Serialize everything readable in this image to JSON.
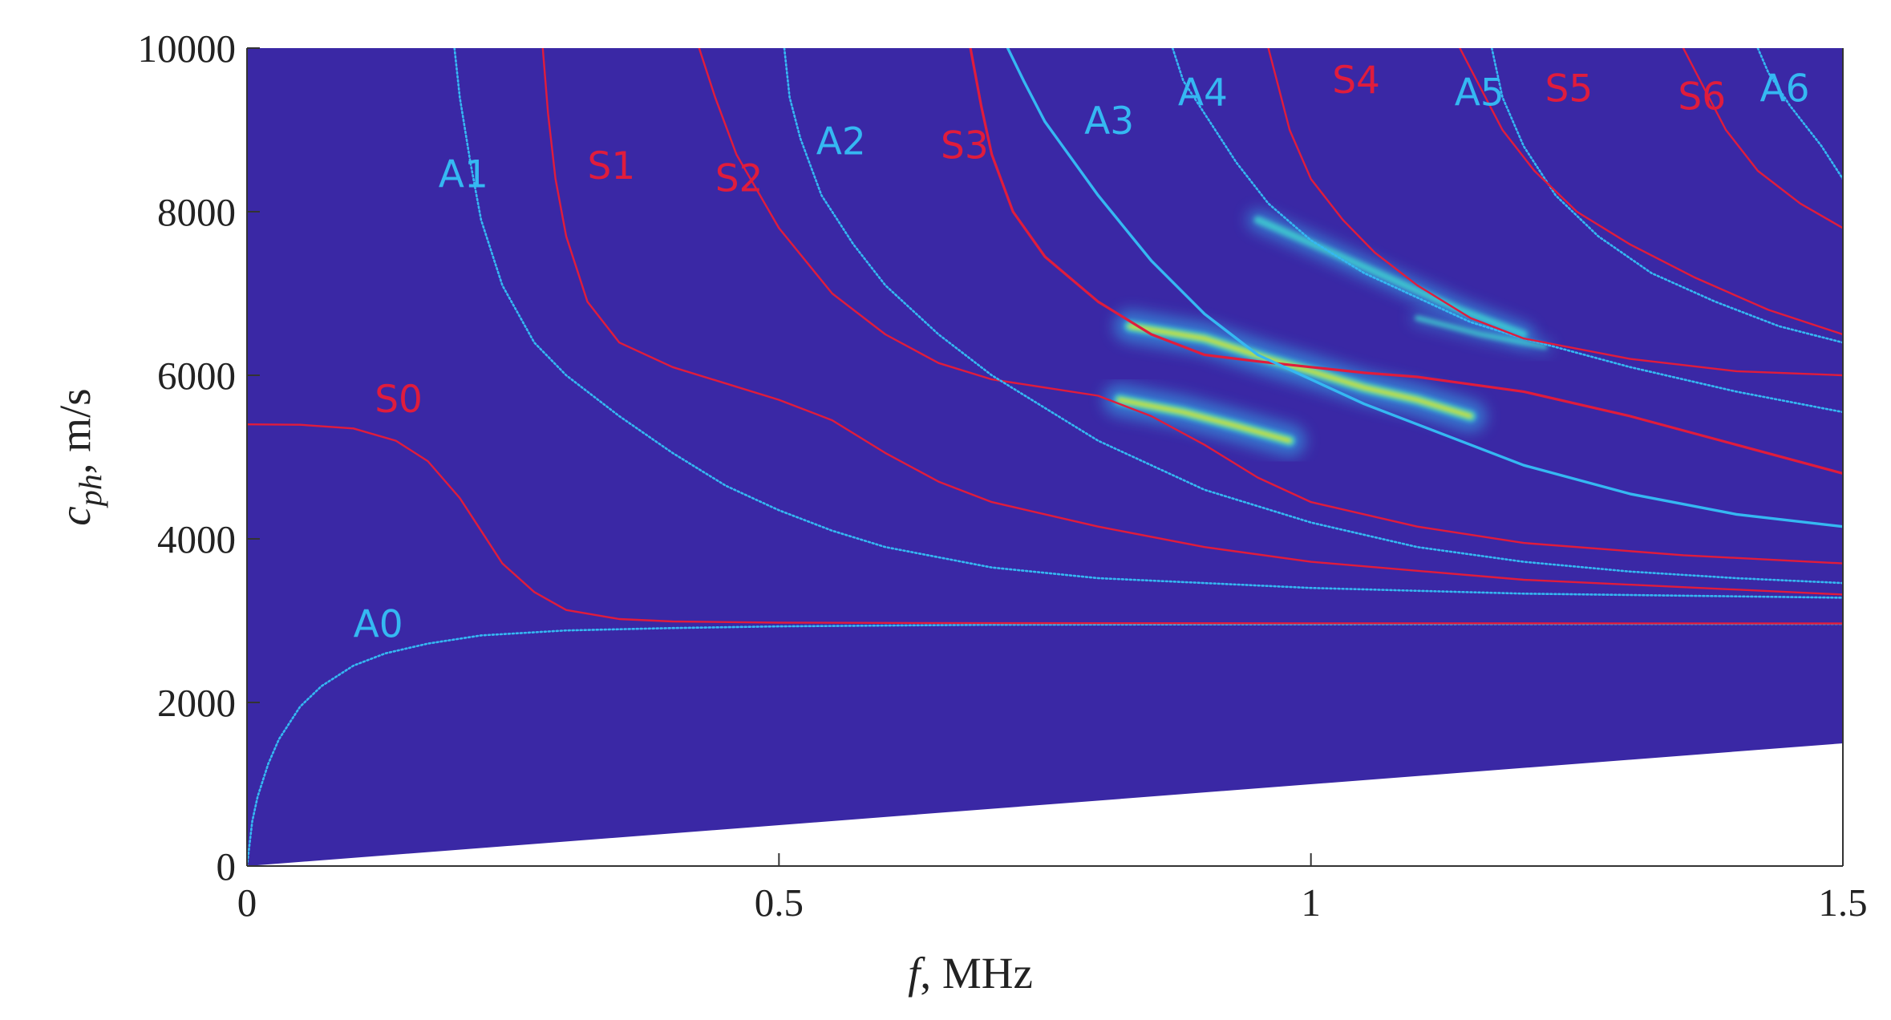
{
  "chart_data": {
    "type": "line",
    "title": "",
    "xlabel": {
      "symbol": "f",
      "rest": ", MHz"
    },
    "ylabel": {
      "symbol": "c",
      "subscript": "ph",
      "rest": ", m/s"
    },
    "xlim": [
      0,
      1.5
    ],
    "ylim": [
      0,
      10000
    ],
    "xticks": [
      0,
      0.5,
      1,
      1.5
    ],
    "xtick_labels": [
      "0",
      "0.5",
      "1",
      "1.5"
    ],
    "yticks": [
      0,
      2000,
      4000,
      6000,
      8000,
      10000
    ],
    "ytick_labels": [
      "0",
      "2000",
      "4000",
      "6000",
      "8000",
      "10000"
    ],
    "grid": false,
    "background": {
      "fill_color": "#3a28a5",
      "excluded_region": "below the line c_ph = 1000 * f (MHz)",
      "excluded_line": {
        "x": [
          0,
          1.5
        ],
        "y": [
          0,
          1500
        ]
      }
    },
    "colors": {
      "antisymmetric": "#35b8f2",
      "symmetric": "#e01c3c",
      "hot": "#f4ea18",
      "warm": "#3fd7d0"
    },
    "hot_spots": [
      {
        "x": [
          0.83,
          0.9,
          0.96,
          1.0,
          1.05,
          1.1,
          1.15
        ],
        "y": [
          6600,
          6450,
          6200,
          6050,
          5850,
          5700,
          5500
        ],
        "intensity": "high"
      },
      {
        "x": [
          0.82,
          0.88,
          0.93,
          0.98
        ],
        "y": [
          5700,
          5550,
          5380,
          5200
        ],
        "intensity": "high"
      },
      {
        "x": [
          0.95,
          1.02,
          1.08,
          1.14,
          1.2
        ],
        "y": [
          7900,
          7500,
          7150,
          6800,
          6500
        ],
        "intensity": "medium"
      },
      {
        "x": [
          1.1,
          1.16,
          1.22
        ],
        "y": [
          6700,
          6500,
          6350
        ],
        "intensity": "low"
      }
    ],
    "series": [
      {
        "name": "A0",
        "kind": "antisymmetric",
        "style": "dotted",
        "x": [
          0,
          0.005,
          0.01,
          0.02,
          0.03,
          0.05,
          0.07,
          0.1,
          0.13,
          0.17,
          0.22,
          0.3,
          0.4,
          0.5,
          0.7,
          0.9,
          1.1,
          1.3,
          1.5
        ],
        "y": [
          0,
          550,
          850,
          1250,
          1550,
          1950,
          2200,
          2450,
          2600,
          2720,
          2820,
          2880,
          2910,
          2930,
          2950,
          2955,
          2958,
          2960,
          2960
        ]
      },
      {
        "name": "S0",
        "kind": "symmetric",
        "style": "solid",
        "x": [
          0,
          0.05,
          0.1,
          0.14,
          0.17,
          0.2,
          0.22,
          0.24,
          0.27,
          0.3,
          0.35,
          0.4,
          0.5,
          0.7,
          1.0,
          1.3,
          1.5
        ],
        "y": [
          5400,
          5395,
          5350,
          5200,
          4950,
          4500,
          4100,
          3700,
          3350,
          3130,
          3020,
          2990,
          2975,
          2970,
          2968,
          2967,
          2966
        ]
      },
      {
        "name": "A1",
        "kind": "antisymmetric",
        "style": "dotted",
        "x": [
          0.195,
          0.2,
          0.21,
          0.22,
          0.24,
          0.27,
          0.3,
          0.35,
          0.4,
          0.45,
          0.5,
          0.55,
          0.6,
          0.7,
          0.8,
          1.0,
          1.2,
          1.5
        ],
        "y": [
          10000,
          9400,
          8600,
          7900,
          7100,
          6400,
          6000,
          5500,
          5050,
          4650,
          4350,
          4100,
          3900,
          3650,
          3520,
          3400,
          3330,
          3280
        ]
      },
      {
        "name": "S1",
        "kind": "symmetric",
        "style": "solid",
        "x": [
          0.278,
          0.283,
          0.29,
          0.3,
          0.32,
          0.35,
          0.4,
          0.45,
          0.5,
          0.55,
          0.6,
          0.65,
          0.7,
          0.8,
          0.9,
          1.0,
          1.2,
          1.5
        ],
        "y": [
          10000,
          9200,
          8400,
          7700,
          6900,
          6400,
          6100,
          5900,
          5700,
          5450,
          5050,
          4700,
          4450,
          4150,
          3900,
          3720,
          3500,
          3320
        ]
      },
      {
        "name": "S2",
        "kind": "symmetric",
        "style": "solid",
        "x": [
          0.425,
          0.44,
          0.46,
          0.5,
          0.55,
          0.6,
          0.65,
          0.7,
          0.75,
          0.8,
          0.85,
          0.9,
          0.95,
          1.0,
          1.1,
          1.2,
          1.35,
          1.5
        ],
        "y": [
          10000,
          9400,
          8700,
          7800,
          7000,
          6500,
          6150,
          5950,
          5850,
          5750,
          5500,
          5150,
          4750,
          4450,
          4150,
          3950,
          3800,
          3700
        ]
      },
      {
        "name": "A2",
        "kind": "antisymmetric",
        "style": "dotted",
        "x": [
          0.505,
          0.51,
          0.52,
          0.54,
          0.57,
          0.6,
          0.65,
          0.7,
          0.75,
          0.8,
          0.9,
          1.0,
          1.1,
          1.2,
          1.3,
          1.4,
          1.5
        ],
        "y": [
          10000,
          9400,
          8900,
          8200,
          7600,
          7100,
          6500,
          6000,
          5600,
          5200,
          4600,
          4200,
          3900,
          3720,
          3600,
          3520,
          3460
        ]
      },
      {
        "name": "S3",
        "kind": "symmetric",
        "style": "solid",
        "x": [
          0.68,
          0.69,
          0.7,
          0.72,
          0.75,
          0.8,
          0.85,
          0.9,
          0.95,
          1.0,
          1.05,
          1.1,
          1.2,
          1.3,
          1.4,
          1.5
        ],
        "y": [
          10000,
          9300,
          8700,
          8000,
          7450,
          6900,
          6500,
          6250,
          6170,
          6100,
          6030,
          5980,
          5800,
          5500,
          5150,
          4800
        ]
      },
      {
        "name": "A3",
        "kind": "antisymmetric",
        "style": "solid",
        "x": [
          0.715,
          0.73,
          0.75,
          0.8,
          0.85,
          0.9,
          0.95,
          1.0,
          1.05,
          1.1,
          1.15,
          1.2,
          1.3,
          1.4,
          1.5
        ],
        "y": [
          10000,
          9600,
          9100,
          8200,
          7400,
          6750,
          6250,
          5950,
          5650,
          5400,
          5150,
          4900,
          4550,
          4300,
          4150
        ]
      },
      {
        "name": "A4",
        "kind": "antisymmetric",
        "style": "dotted",
        "x": [
          0.87,
          0.88,
          0.9,
          0.93,
          0.96,
          1.0,
          1.05,
          1.1,
          1.15,
          1.2,
          1.3,
          1.4,
          1.5
        ],
        "y": [
          10000,
          9600,
          9200,
          8600,
          8100,
          7650,
          7250,
          6950,
          6650,
          6450,
          6100,
          5800,
          5550
        ]
      },
      {
        "name": "S4",
        "kind": "symmetric",
        "style": "solid",
        "x": [
          0.96,
          0.97,
          0.98,
          1.0,
          1.03,
          1.06,
          1.1,
          1.15,
          1.2,
          1.3,
          1.4,
          1.5
        ],
        "y": [
          10000,
          9500,
          9000,
          8400,
          7900,
          7500,
          7100,
          6700,
          6450,
          6200,
          6050,
          6000
        ]
      },
      {
        "name": "A5",
        "kind": "antisymmetric",
        "style": "dotted",
        "x": [
          1.17,
          1.18,
          1.2,
          1.23,
          1.27,
          1.32,
          1.38,
          1.44,
          1.5
        ],
        "y": [
          10000,
          9400,
          8800,
          8200,
          7700,
          7250,
          6900,
          6600,
          6400
        ]
      },
      {
        "name": "S5",
        "kind": "symmetric",
        "style": "solid",
        "x": [
          1.14,
          1.16,
          1.18,
          1.21,
          1.25,
          1.3,
          1.36,
          1.43,
          1.5
        ],
        "y": [
          10000,
          9500,
          9000,
          8500,
          8000,
          7600,
          7200,
          6800,
          6500
        ]
      },
      {
        "name": "S6",
        "kind": "symmetric",
        "style": "solid",
        "x": [
          1.35,
          1.37,
          1.39,
          1.42,
          1.46,
          1.5
        ],
        "y": [
          10000,
          9500,
          9000,
          8500,
          8100,
          7800
        ]
      },
      {
        "name": "A6",
        "kind": "antisymmetric",
        "style": "dotted",
        "x": [
          1.42,
          1.43,
          1.45,
          1.48,
          1.5
        ],
        "y": [
          10000,
          9700,
          9300,
          8800,
          8400
        ]
      }
    ],
    "mode_labels": [
      {
        "text": "A0",
        "kind": "antisymmetric",
        "x": 0.1,
        "y": 2800
      },
      {
        "text": "S0",
        "kind": "symmetric",
        "x": 0.12,
        "y": 5550
      },
      {
        "text": "A1",
        "kind": "antisymmetric",
        "x": 0.18,
        "y": 8300
      },
      {
        "text": "S1",
        "kind": "symmetric",
        "x": 0.32,
        "y": 8400
      },
      {
        "text": "S2",
        "kind": "symmetric",
        "x": 0.44,
        "y": 8250
      },
      {
        "text": "A2",
        "kind": "antisymmetric",
        "x": 0.535,
        "y": 8700
      },
      {
        "text": "S3",
        "kind": "symmetric",
        "x": 0.652,
        "y": 8650
      },
      {
        "text": "A3",
        "kind": "antisymmetric",
        "x": 0.787,
        "y": 8950
      },
      {
        "text": "A4",
        "kind": "antisymmetric",
        "x": 0.875,
        "y": 9300
      },
      {
        "text": "S4",
        "kind": "symmetric",
        "x": 1.02,
        "y": 9450
      },
      {
        "text": "A5",
        "kind": "antisymmetric",
        "x": 1.135,
        "y": 9300
      },
      {
        "text": "S5",
        "kind": "symmetric",
        "x": 1.22,
        "y": 9350
      },
      {
        "text": "S6",
        "kind": "symmetric",
        "x": 1.345,
        "y": 9250
      },
      {
        "text": "A6",
        "kind": "antisymmetric",
        "x": 1.422,
        "y": 9350
      }
    ]
  }
}
